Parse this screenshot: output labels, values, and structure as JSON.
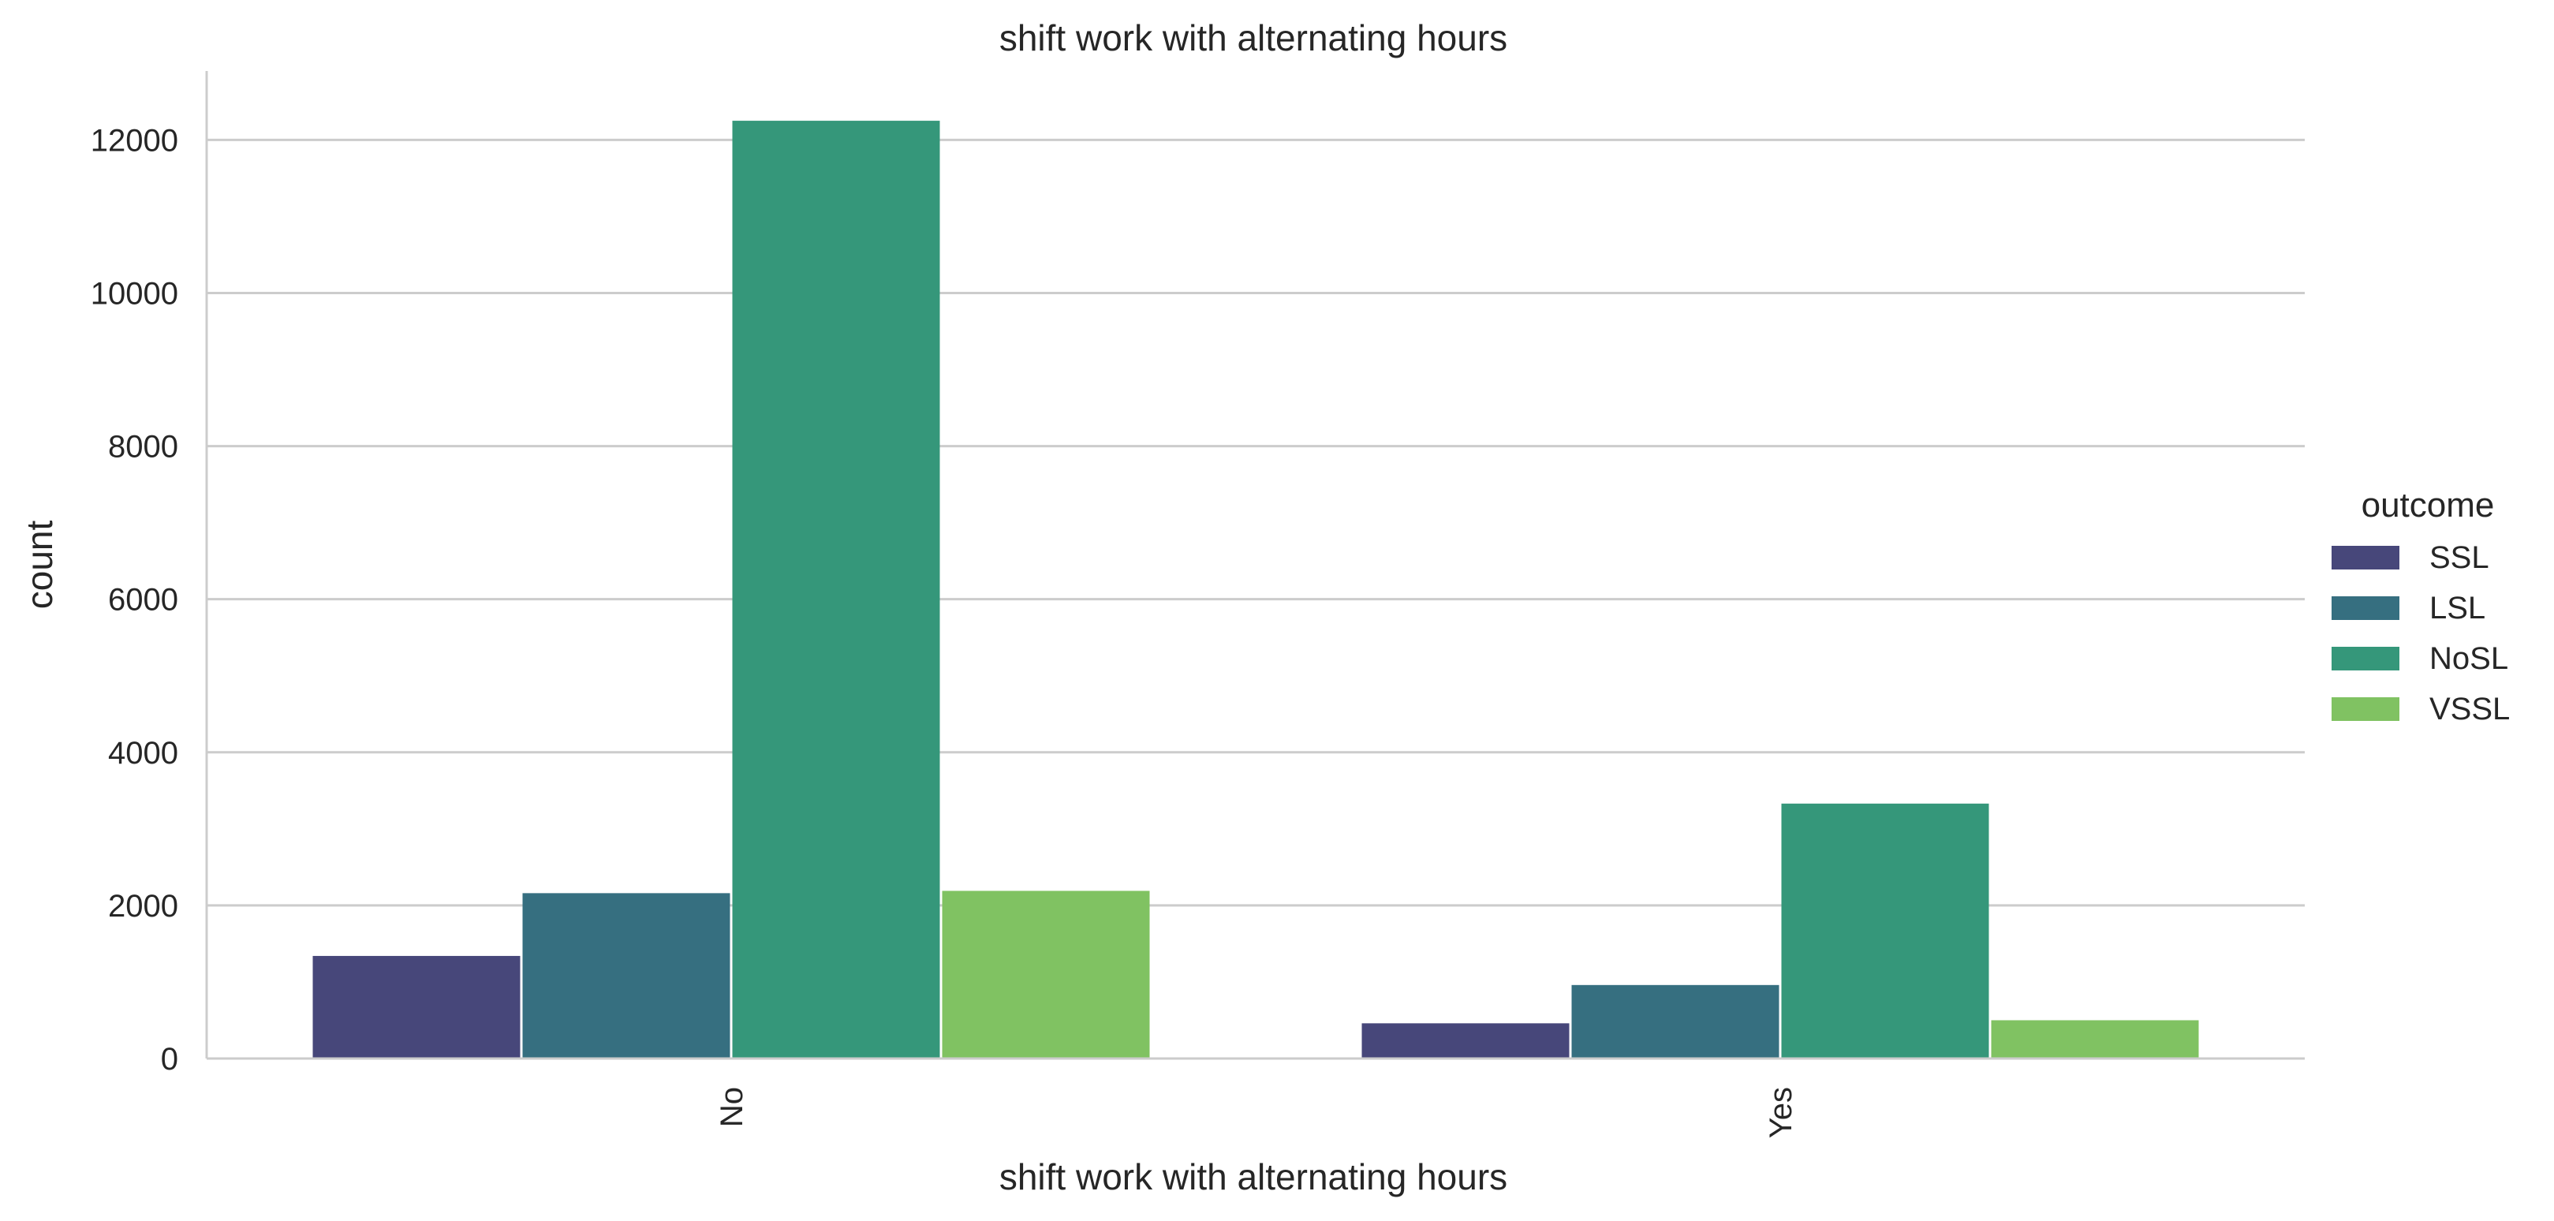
{
  "chart_data": {
    "type": "bar",
    "title": "shift work with alternating hours",
    "xlabel": "shift work with alternating hours",
    "ylabel": "count",
    "categories": [
      "No",
      "Yes"
    ],
    "series": [
      {
        "name": "SSL",
        "color": "#47477a",
        "values": [
          1340,
          460
        ]
      },
      {
        "name": "LSL",
        "color": "#366f80",
        "values": [
          2160,
          960
        ]
      },
      {
        "name": "NoSL",
        "color": "#35977a",
        "values": [
          12250,
          3330
        ]
      },
      {
        "name": "VSSL",
        "color": "#80c262",
        "values": [
          2190,
          500
        ]
      }
    ],
    "ylim": [
      0,
      12900
    ],
    "yticks": [
      "0",
      "2000",
      "4000",
      "6000",
      "8000",
      "10000",
      "12000"
    ],
    "grid": true,
    "legend": {
      "title": "outcome",
      "placement": "right"
    }
  }
}
